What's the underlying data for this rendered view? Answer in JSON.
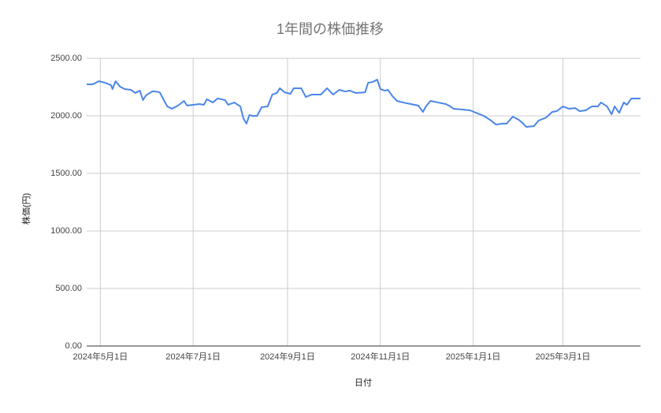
{
  "chart_data": {
    "type": "line",
    "title": "1年間の株価推移",
    "x_label": "日付",
    "y_label": "株価(円)",
    "color": "#4a86e8",
    "grid": true,
    "xlim": [
      "2024-04-22",
      "2025-04-21"
    ],
    "xticks": [
      {
        "value": "2024-05-01",
        "label": "2024年5月1日"
      },
      {
        "value": "2024-07-01",
        "label": "2024年7月1日"
      },
      {
        "value": "2024-09-01",
        "label": "2024年9月1日"
      },
      {
        "value": "2024-11-01",
        "label": "2024年11月1日"
      },
      {
        "value": "2025-01-01",
        "label": "2025年1月1日"
      },
      {
        "value": "2025-03-01",
        "label": "2025年3月1日"
      }
    ],
    "ylim": [
      0,
      2500
    ],
    "yticks": [
      {
        "value": 0,
        "label": "0.00"
      },
      {
        "value": 500,
        "label": "500.00"
      },
      {
        "value": 1000,
        "label": "1000.00"
      },
      {
        "value": 1500,
        "label": "1500.00"
      },
      {
        "value": 2000,
        "label": "2000.00"
      },
      {
        "value": 2500,
        "label": "2500.00"
      }
    ],
    "x": [
      "2024-04-22",
      "2024-04-26",
      "2024-04-30",
      "2024-05-04",
      "2024-05-08",
      "2024-05-09",
      "2024-05-11",
      "2024-05-14",
      "2024-05-17",
      "2024-05-21",
      "2024-05-24",
      "2024-05-27",
      "2024-05-29",
      "2024-05-31",
      "2024-06-04",
      "2024-06-06",
      "2024-06-09",
      "2024-06-12",
      "2024-06-14",
      "2024-06-17",
      "2024-06-21",
      "2024-06-25",
      "2024-06-27",
      "2024-07-01",
      "2024-07-05",
      "2024-07-08",
      "2024-07-10",
      "2024-07-14",
      "2024-07-17",
      "2024-07-22",
      "2024-07-24",
      "2024-07-28",
      "2024-08-01",
      "2024-08-03",
      "2024-08-05",
      "2024-08-07",
      "2024-08-09",
      "2024-08-12",
      "2024-08-15",
      "2024-08-19",
      "2024-08-22",
      "2024-08-25",
      "2024-08-27",
      "2024-08-30",
      "2024-09-03",
      "2024-09-05",
      "2024-09-10",
      "2024-09-13",
      "2024-09-17",
      "2024-09-23",
      "2024-09-27",
      "2024-10-01",
      "2024-10-05",
      "2024-10-09",
      "2024-10-12",
      "2024-10-16",
      "2024-10-22",
      "2024-10-24",
      "2024-10-27",
      "2024-10-30",
      "2024-11-01",
      "2024-11-04",
      "2024-11-06",
      "2024-11-09",
      "2024-11-12",
      "2024-11-16",
      "2024-11-21",
      "2024-11-26",
      "2024-11-29",
      "2024-12-01",
      "2024-12-04",
      "2024-12-09",
      "2024-12-14",
      "2024-12-17",
      "2024-12-19",
      "2024-12-25",
      "2024-12-30",
      "2025-01-04",
      "2025-01-08",
      "2025-01-12",
      "2025-01-16",
      "2025-01-20",
      "2025-01-23",
      "2025-01-27",
      "2025-01-31",
      "2025-02-03",
      "2025-02-05",
      "2025-02-10",
      "2025-02-13",
      "2025-02-18",
      "2025-02-22",
      "2025-02-25",
      "2025-03-01",
      "2025-03-05",
      "2025-03-09",
      "2025-03-12",
      "2025-03-16",
      "2025-03-20",
      "2025-03-24",
      "2025-03-26",
      "2025-03-30",
      "2025-04-02",
      "2025-04-04",
      "2025-04-07",
      "2025-04-10",
      "2025-04-12",
      "2025-04-15",
      "2025-04-21"
    ],
    "values": [
      2274,
      2274,
      2301,
      2288,
      2267,
      2233,
      2301,
      2253,
      2233,
      2226,
      2199,
      2219,
      2137,
      2178,
      2212,
      2212,
      2205,
      2130,
      2082,
      2062,
      2089,
      2130,
      2089,
      2096,
      2103,
      2096,
      2144,
      2116,
      2151,
      2137,
      2096,
      2116,
      2082,
      1979,
      1932,
      2007,
      2000,
      2000,
      2075,
      2082,
      2185,
      2199,
      2240,
      2205,
      2192,
      2240,
      2240,
      2164,
      2185,
      2185,
      2240,
      2185,
      2226,
      2212,
      2219,
      2199,
      2205,
      2288,
      2295,
      2315,
      2233,
      2219,
      2226,
      2171,
      2130,
      2116,
      2103,
      2089,
      2034,
      2082,
      2130,
      2116,
      2103,
      2082,
      2062,
      2055,
      2048,
      2021,
      2000,
      1966,
      1925,
      1932,
      1932,
      1993,
      1966,
      1932,
      1904,
      1911,
      1959,
      1986,
      2034,
      2041,
      2082,
      2062,
      2068,
      2041,
      2048,
      2082,
      2082,
      2116,
      2082,
      2014,
      2082,
      2027,
      2116,
      2096,
      2151,
      2151
    ]
  }
}
